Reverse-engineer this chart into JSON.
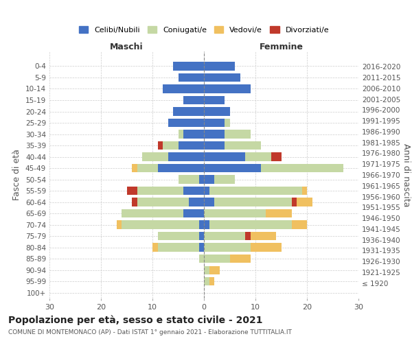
{
  "age_groups": [
    "100+",
    "95-99",
    "90-94",
    "85-89",
    "80-84",
    "75-79",
    "70-74",
    "65-69",
    "60-64",
    "55-59",
    "50-54",
    "45-49",
    "40-44",
    "35-39",
    "30-34",
    "25-29",
    "20-24",
    "15-19",
    "10-14",
    "5-9",
    "0-4"
  ],
  "birth_years": [
    "≤ 1920",
    "1921-1925",
    "1926-1930",
    "1931-1935",
    "1936-1940",
    "1941-1945",
    "1946-1950",
    "1951-1955",
    "1956-1960",
    "1961-1965",
    "1966-1970",
    "1971-1975",
    "1976-1980",
    "1981-1985",
    "1986-1990",
    "1991-1995",
    "1996-2000",
    "2001-2005",
    "2006-2010",
    "2011-2015",
    "2016-2020"
  ],
  "colors": {
    "celibe": "#4472c4",
    "coniugato": "#c5d8a4",
    "vedovo": "#f0c060",
    "divorziato": "#c0392b"
  },
  "maschi": {
    "celibe": [
      0,
      0,
      0,
      0,
      1,
      1,
      1,
      4,
      3,
      4,
      1,
      9,
      7,
      5,
      4,
      7,
      6,
      4,
      8,
      5,
      6
    ],
    "coniugato": [
      0,
      0,
      0,
      1,
      8,
      8,
      15,
      12,
      10,
      9,
      4,
      4,
      5,
      3,
      1,
      0,
      0,
      0,
      0,
      0,
      0
    ],
    "vedovo": [
      0,
      0,
      0,
      0,
      1,
      0,
      1,
      0,
      0,
      0,
      0,
      1,
      0,
      0,
      0,
      0,
      0,
      0,
      0,
      0,
      0
    ],
    "divorziato": [
      0,
      0,
      0,
      0,
      0,
      0,
      0,
      0,
      1,
      2,
      0,
      0,
      0,
      1,
      0,
      0,
      0,
      0,
      0,
      0,
      0
    ]
  },
  "femmine": {
    "celibe": [
      0,
      0,
      0,
      0,
      0,
      0,
      1,
      0,
      2,
      1,
      2,
      11,
      8,
      4,
      4,
      4,
      5,
      4,
      9,
      7,
      6
    ],
    "coniugato": [
      0,
      1,
      1,
      5,
      9,
      8,
      16,
      12,
      15,
      18,
      4,
      16,
      5,
      7,
      5,
      1,
      0,
      0,
      0,
      0,
      0
    ],
    "vedovo": [
      0,
      1,
      2,
      4,
      6,
      5,
      3,
      5,
      3,
      1,
      0,
      0,
      0,
      0,
      0,
      0,
      0,
      0,
      0,
      0,
      0
    ],
    "divorziato": [
      0,
      0,
      0,
      0,
      0,
      1,
      0,
      0,
      1,
      0,
      0,
      0,
      2,
      0,
      0,
      0,
      0,
      0,
      0,
      0,
      0
    ]
  },
  "xlim": 30,
  "title": "Popolazione per età, sesso e stato civile - 2021",
  "subtitle": "COMUNE DI MONTEMONACO (AP) - Dati ISTAT 1° gennaio 2021 - Elaborazione TUTTITALIA.IT",
  "xlabel_maschi": "Maschi",
  "xlabel_femmine": "Femmine",
  "ylabel": "Fasce di età",
  "ylabel_right": "Anni di nascita",
  "legend_labels": [
    "Celibi/Nubili",
    "Coniugati/e",
    "Vedovi/e",
    "Divorziati/e"
  ],
  "bg_color": "#ffffff",
  "grid_color": "#cccccc"
}
